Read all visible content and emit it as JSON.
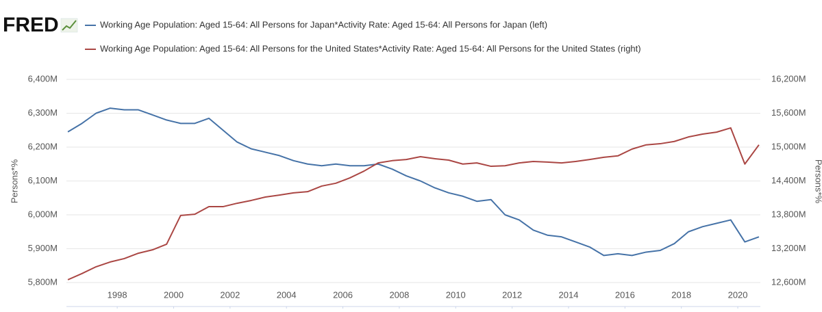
{
  "logo": "FRED",
  "chart_data": {
    "type": "line",
    "ylabel": "Persons*%",
    "y2label": "Persons*%",
    "x": [
      1996.25,
      1996.75,
      1997.25,
      1997.75,
      1998.25,
      1998.75,
      1999.25,
      1999.75,
      2000.25,
      2000.75,
      2001.25,
      2001.75,
      2002.25,
      2002.75,
      2003.25,
      2003.75,
      2004.25,
      2004.75,
      2005.25,
      2005.75,
      2006.25,
      2006.75,
      2007.25,
      2007.75,
      2008.25,
      2008.75,
      2009.25,
      2009.75,
      2010.25,
      2010.75,
      2011.25,
      2011.75,
      2012.25,
      2012.75,
      2013.25,
      2013.75,
      2014.25,
      2014.75,
      2015.25,
      2015.75,
      2016.25,
      2016.75,
      2017.25,
      2017.75,
      2018.25,
      2018.75,
      2019.25,
      2019.75,
      2020.25,
      2020.75
    ],
    "xlim": [
      1996.2,
      2020.8
    ],
    "xticks": [
      1998,
      2000,
      2002,
      2004,
      2006,
      2008,
      2010,
      2012,
      2014,
      2016,
      2018,
      2020
    ],
    "ylim": [
      5800,
      6400
    ],
    "yticks": [
      {
        "value": 5800,
        "label": "5,800M"
      },
      {
        "value": 5900,
        "label": "5,900M"
      },
      {
        "value": 6000,
        "label": "6,000M"
      },
      {
        "value": 6100,
        "label": "6,100M"
      },
      {
        "value": 6200,
        "label": "6,200M"
      },
      {
        "value": 6300,
        "label": "6,300M"
      },
      {
        "value": 6400,
        "label": "6,400M"
      }
    ],
    "y2lim": [
      12600,
      16200
    ],
    "y2ticks": [
      {
        "value": 12600,
        "label": "12,600M"
      },
      {
        "value": 13200,
        "label": "13,200M"
      },
      {
        "value": 13800,
        "label": "13,800M"
      },
      {
        "value": 14400,
        "label": "14,400M"
      },
      {
        "value": 15000,
        "label": "15,000M"
      },
      {
        "value": 15600,
        "label": "15,600M"
      },
      {
        "value": 16200,
        "label": "16,200M"
      }
    ],
    "grid": true,
    "series": [
      {
        "name": "Working Age Population: Aged 15-64: All Persons for Japan*Activity Rate: Aged 15-64: All Persons for Japan (left)",
        "color": "#4572a7",
        "axis": "y",
        "values": [
          6245,
          6270,
          6300,
          6315,
          6310,
          6310,
          6295,
          6280,
          6270,
          6270,
          6285,
          6250,
          6215,
          6195,
          6185,
          6175,
          6160,
          6150,
          6145,
          6150,
          6145,
          6145,
          6150,
          6135,
          6115,
          6100,
          6080,
          6065,
          6055,
          6040,
          6045,
          6000,
          5985,
          5955,
          5940,
          5935,
          5920,
          5905,
          5880,
          5885,
          5880,
          5890,
          5895,
          5915,
          5950,
          5965,
          5975,
          5985,
          5920,
          5935
        ]
      },
      {
        "name": "Working Age Population: Aged 15-64: All Persons for the United States*Activity Rate: Aged 15-64: All Persons for the United States (right)",
        "color": "#aa4643",
        "axis": "y2",
        "values": [
          12650,
          12760,
          12880,
          12965,
          13025,
          13120,
          13180,
          13280,
          13790,
          13810,
          13945,
          13945,
          14005,
          14055,
          14115,
          14150,
          14190,
          14210,
          14310,
          14360,
          14455,
          14575,
          14720,
          14760,
          14780,
          14830,
          14795,
          14770,
          14700,
          14720,
          14660,
          14670,
          14720,
          14745,
          14735,
          14720,
          14745,
          14780,
          14820,
          14845,
          14965,
          15040,
          15060,
          15100,
          15180,
          15230,
          15265,
          15340,
          14700,
          15040
        ]
      }
    ]
  }
}
